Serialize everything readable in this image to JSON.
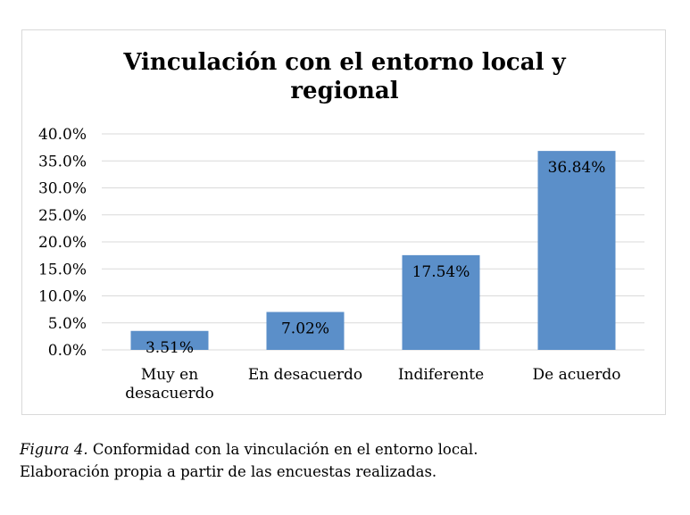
{
  "colors": {
    "bar": "#5b8fc9",
    "grid": "#d9d9d9",
    "frame": "#d9d9d9",
    "text": "#000000"
  },
  "chart_data": {
    "type": "bar",
    "title_lines": [
      "Vinculación con el entorno local y",
      "regional"
    ],
    "categories": [
      "Muy en desacuerdo",
      "En desacuerdo",
      "Indiferente",
      "De acuerdo"
    ],
    "category_label_lines": [
      [
        "Muy en",
        "desacuerdo"
      ],
      [
        "En desacuerdo"
      ],
      [
        "Indiferente"
      ],
      [
        "De acuerdo"
      ]
    ],
    "values": [
      3.51,
      7.02,
      17.54,
      36.84
    ],
    "data_labels": [
      "3.51%",
      "7.02%",
      "17.54%",
      "36.84%"
    ],
    "ylim": [
      0,
      40
    ],
    "yticks": [
      0,
      5,
      10,
      15,
      20,
      25,
      30,
      35,
      40
    ],
    "ytick_labels": [
      "0.0%",
      "5.0%",
      "10.0%",
      "15.0%",
      "20.0%",
      "25.0%",
      "30.0%",
      "35.0%",
      "40.0%"
    ],
    "grid": true,
    "legend": false,
    "xlabel": "",
    "ylabel": ""
  },
  "caption": {
    "figure_label": "Figura 4.",
    "line1_rest": " Conformidad con la vinculación en el entorno local.",
    "line2": "Elaboración propia a partir de las encuestas realizadas."
  }
}
